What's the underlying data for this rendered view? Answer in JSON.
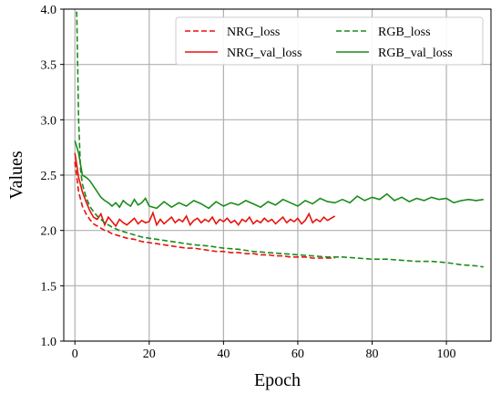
{
  "chart_data": {
    "type": "line",
    "title": "",
    "xlabel": "Epoch",
    "ylabel": "Values",
    "xlim": [
      -3,
      112
    ],
    "ylim": [
      1.0,
      4.0
    ],
    "xticks": [
      0,
      20,
      40,
      60,
      80,
      100
    ],
    "yticks": [
      1.0,
      1.5,
      2.0,
      2.5,
      3.0,
      3.5,
      4.0
    ],
    "grid": true,
    "legend": "top-right",
    "series": [
      {
        "name": "NRG_loss",
        "color": "#e8120c",
        "dash": true,
        "x": [
          0,
          1,
          2,
          3,
          4,
          5,
          6,
          7,
          8,
          9,
          10,
          12,
          14,
          16,
          18,
          20,
          22,
          24,
          26,
          28,
          30,
          32,
          34,
          36,
          38,
          40,
          42,
          44,
          46,
          48,
          50,
          52,
          54,
          56,
          58,
          60,
          62,
          64,
          66,
          68,
          70
        ],
        "y": [
          2.62,
          2.35,
          2.22,
          2.15,
          2.1,
          2.06,
          2.04,
          2.02,
          2.0,
          1.99,
          1.97,
          1.95,
          1.93,
          1.92,
          1.9,
          1.89,
          1.88,
          1.87,
          1.86,
          1.85,
          1.84,
          1.84,
          1.83,
          1.82,
          1.81,
          1.81,
          1.8,
          1.8,
          1.79,
          1.79,
          1.78,
          1.78,
          1.77,
          1.77,
          1.76,
          1.76,
          1.76,
          1.75,
          1.75,
          1.75,
          1.75
        ]
      },
      {
        "name": "NRG_val_loss",
        "color": "#e8120c",
        "dash": false,
        "x": [
          0,
          1,
          2,
          3,
          4,
          5,
          6,
          7,
          8,
          9,
          10,
          11,
          12,
          13,
          14,
          15,
          16,
          17,
          18,
          19,
          20,
          21,
          22,
          23,
          24,
          25,
          26,
          27,
          28,
          29,
          30,
          31,
          32,
          33,
          34,
          35,
          36,
          37,
          38,
          39,
          40,
          41,
          42,
          43,
          44,
          45,
          46,
          47,
          48,
          49,
          50,
          51,
          52,
          53,
          54,
          55,
          56,
          57,
          58,
          59,
          60,
          61,
          62,
          63,
          64,
          65,
          66,
          67,
          68,
          69,
          70
        ],
        "y": [
          2.7,
          2.48,
          2.35,
          2.26,
          2.18,
          2.12,
          2.1,
          2.15,
          2.05,
          2.12,
          2.08,
          2.04,
          2.1,
          2.07,
          2.05,
          2.08,
          2.11,
          2.06,
          2.09,
          2.07,
          2.08,
          2.16,
          2.05,
          2.1,
          2.06,
          2.09,
          2.12,
          2.07,
          2.1,
          2.08,
          2.13,
          2.05,
          2.09,
          2.11,
          2.07,
          2.1,
          2.08,
          2.12,
          2.06,
          2.1,
          2.08,
          2.11,
          2.07,
          2.09,
          2.05,
          2.1,
          2.08,
          2.12,
          2.06,
          2.09,
          2.07,
          2.11,
          2.08,
          2.1,
          2.06,
          2.09,
          2.12,
          2.07,
          2.1,
          2.08,
          2.11,
          2.06,
          2.09,
          2.15,
          2.07,
          2.1,
          2.08,
          2.12,
          2.09,
          2.11,
          2.13
        ]
      },
      {
        "name": "RGB_loss",
        "color": "#1a8c1a",
        "dash": true,
        "x": [
          0,
          0.5,
          1,
          1.5,
          2,
          2.5,
          3,
          4,
          5,
          6,
          8,
          10,
          12,
          14,
          16,
          18,
          20,
          24,
          28,
          32,
          36,
          40,
          44,
          48,
          52,
          56,
          60,
          64,
          68,
          72,
          76,
          80,
          84,
          88,
          92,
          96,
          100,
          104,
          108,
          110
        ],
        "y": [
          4.2,
          3.95,
          3.0,
          2.55,
          2.42,
          2.36,
          2.3,
          2.22,
          2.17,
          2.13,
          2.07,
          2.03,
          2.0,
          1.98,
          1.96,
          1.94,
          1.93,
          1.91,
          1.89,
          1.87,
          1.86,
          1.84,
          1.83,
          1.81,
          1.8,
          1.79,
          1.78,
          1.77,
          1.76,
          1.76,
          1.75,
          1.74,
          1.74,
          1.73,
          1.72,
          1.72,
          1.71,
          1.69,
          1.68,
          1.67
        ]
      },
      {
        "name": "RGB_val_loss",
        "color": "#1a8c1a",
        "dash": false,
        "x": [
          0,
          1,
          2,
          3,
          4,
          5,
          6,
          7,
          8,
          9,
          10,
          11,
          12,
          13,
          14,
          15,
          16,
          17,
          18,
          19,
          20,
          22,
          24,
          26,
          28,
          30,
          32,
          34,
          36,
          38,
          40,
          42,
          44,
          46,
          48,
          50,
          52,
          54,
          56,
          58,
          60,
          62,
          64,
          66,
          68,
          70,
          72,
          74,
          76,
          78,
          80,
          82,
          84,
          86,
          88,
          90,
          92,
          94,
          96,
          98,
          100,
          102,
          104,
          106,
          108,
          110
        ],
        "y": [
          2.81,
          2.7,
          2.5,
          2.48,
          2.45,
          2.4,
          2.35,
          2.3,
          2.27,
          2.25,
          2.22,
          2.25,
          2.21,
          2.27,
          2.24,
          2.22,
          2.28,
          2.23,
          2.25,
          2.29,
          2.22,
          2.2,
          2.26,
          2.21,
          2.25,
          2.22,
          2.27,
          2.24,
          2.2,
          2.26,
          2.22,
          2.25,
          2.23,
          2.27,
          2.24,
          2.21,
          2.26,
          2.23,
          2.28,
          2.25,
          2.22,
          2.27,
          2.24,
          2.29,
          2.26,
          2.25,
          2.28,
          2.25,
          2.31,
          2.27,
          2.3,
          2.28,
          2.33,
          2.27,
          2.3,
          2.26,
          2.29,
          2.27,
          2.3,
          2.28,
          2.29,
          2.25,
          2.27,
          2.28,
          2.27,
          2.28
        ]
      }
    ]
  }
}
